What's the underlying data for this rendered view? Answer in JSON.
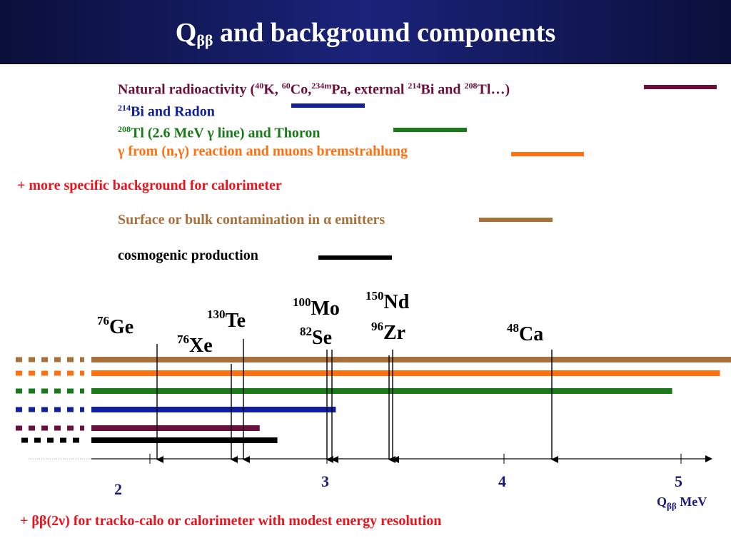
{
  "title": {
    "main": "Q",
    "sub": "ββ",
    "rest": " and background components"
  },
  "legend": [
    {
      "key": "natural",
      "color": "#6b0f3c",
      "parts": [
        "Natural radioactivity (",
        "40",
        "K, ",
        "60",
        "Co,",
        "234m",
        "Pa, external ",
        "214",
        "Bi and ",
        "208",
        "Tl…)"
      ]
    },
    {
      "key": "bi214",
      "color": "#0f1f9e",
      "parts": [
        "",
        "214",
        "Bi and Radon"
      ]
    },
    {
      "key": "tl208",
      "color": "#1a7a1a",
      "parts": [
        "",
        "208",
        "Tl (2.6 MeV γ line) and Thoron"
      ]
    },
    {
      "key": "gamma",
      "color": "#ff7010",
      "parts": [
        "γ from (n,γ) reaction and muons bremstrahlung"
      ]
    }
  ],
  "note_calorimeter": "+ more specific background for calorimeter",
  "legend2": [
    {
      "key": "alpha",
      "color": "#a8703a",
      "text": "Surface or bulk contamination in α emitters"
    },
    {
      "key": "cosmo",
      "color": "#000000",
      "text": "cosmogenic production"
    }
  ],
  "isotopes": [
    {
      "mass": "76",
      "symbol": "Ge",
      "q": 2.04
    },
    {
      "mass": "76",
      "symbol": "Xe",
      "q": 2.46
    },
    {
      "mass": "130",
      "symbol": "Te",
      "q": 2.53
    },
    {
      "mass": "100",
      "symbol": "Mo",
      "q": 3.03
    },
    {
      "mass": "82",
      "symbol": "Se",
      "q": 3.0
    },
    {
      "mass": "150",
      "symbol": "Nd",
      "q": 3.37
    },
    {
      "mass": "96",
      "symbol": "Zr",
      "q": 3.35
    },
    {
      "mass": "48",
      "symbol": "Ca",
      "q": 4.27
    }
  ],
  "chart_data": {
    "type": "bar",
    "xlabel_main": "Q",
    "xlabel_sub": "ββ",
    "xlabel_unit": " MeV",
    "ticks": [
      "2",
      "3",
      "4",
      "5"
    ],
    "xlim": [
      1.85,
      5.2
    ],
    "bars": [
      {
        "key": "alpha",
        "color": "#a8703a",
        "end": 5.3
      },
      {
        "key": "gamma",
        "color": "#ff7010",
        "end": 5.22
      },
      {
        "key": "tl208",
        "color": "#1a7a1a",
        "end": 4.95
      },
      {
        "key": "bi214",
        "color": "#0f1f9e",
        "end": 3.05
      },
      {
        "key": "natural",
        "color": "#6b0f3c",
        "end": 2.62
      },
      {
        "key": "cosmo",
        "color": "#000000",
        "end": 2.72
      }
    ]
  },
  "note_bottom": "+ ββ(2ν) for tracko-calo or calorimeter with modest energy resolution"
}
